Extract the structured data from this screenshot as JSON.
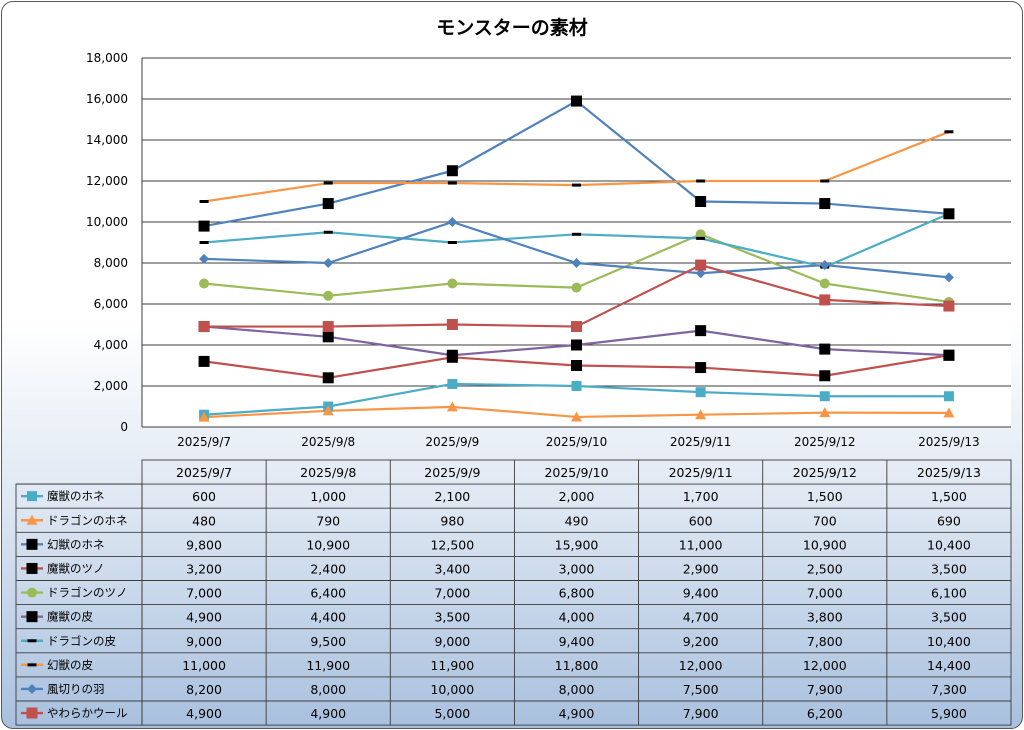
{
  "chart_data": {
    "type": "line",
    "title": "モンスターの素材",
    "categories": [
      "2025/9/7",
      "2025/9/8",
      "2025/9/9",
      "2025/9/10",
      "2025/9/11",
      "2025/9/12",
      "2025/9/13"
    ],
    "ylim": [
      0,
      18000
    ],
    "y_ticks": [
      "0",
      "2,000",
      "4,000",
      "6,000",
      "8,000",
      "10,000",
      "12,000",
      "14,000",
      "16,000",
      "18,000"
    ],
    "grid": true,
    "legend_placement": "data table",
    "series": [
      {
        "name": "魔獣のホネ",
        "color": "#4bacc6",
        "marker": "square",
        "values": [
          600,
          1000,
          2100,
          2000,
          1700,
          1500,
          1500
        ],
        "labels": [
          "600",
          "1,000",
          "2,100",
          "2,000",
          "1,700",
          "1,500",
          "1,500"
        ]
      },
      {
        "name": "ドラゴンのホネ",
        "color": "#f79646",
        "marker": "triangle",
        "values": [
          480,
          790,
          980,
          490,
          600,
          700,
          690
        ],
        "labels": [
          "480",
          "790",
          "980",
          "490",
          "600",
          "700",
          "690"
        ]
      },
      {
        "name": "幻獣のホネ",
        "color": "#4f81bd",
        "marker": "blacksquare",
        "values": [
          9800,
          10900,
          12500,
          15900,
          11000,
          10900,
          10400
        ],
        "labels": [
          "9,800",
          "10,900",
          "12,500",
          "15,900",
          "11,000",
          "10,900",
          "10,400"
        ]
      },
      {
        "name": "魔獣のツノ",
        "color": "#c0504d",
        "marker": "blacksquare",
        "values": [
          3200,
          2400,
          3400,
          3000,
          2900,
          2500,
          3500
        ],
        "labels": [
          "3,200",
          "2,400",
          "3,400",
          "3,000",
          "2,900",
          "2,500",
          "3,500"
        ]
      },
      {
        "name": "ドラゴンのツノ",
        "color": "#9bbb59",
        "marker": "circle",
        "values": [
          7000,
          6400,
          7000,
          6800,
          9400,
          7000,
          6100
        ],
        "labels": [
          "7,000",
          "6,400",
          "7,000",
          "6,800",
          "9,400",
          "7,000",
          "6,100"
        ]
      },
      {
        "name": "魔獣の皮",
        "color": "#8064a2",
        "marker": "blacksquare",
        "values": [
          4900,
          4400,
          3500,
          4000,
          4700,
          3800,
          3500
        ],
        "labels": [
          "4,900",
          "4,400",
          "3,500",
          "4,000",
          "4,700",
          "3,800",
          "3,500"
        ]
      },
      {
        "name": "ドラゴンの皮",
        "color": "#4bacc6",
        "marker": "dash",
        "values": [
          9000,
          9500,
          9000,
          9400,
          9200,
          7800,
          10400
        ],
        "labels": [
          "9,000",
          "9,500",
          "9,000",
          "9,400",
          "9,200",
          "7,800",
          "10,400"
        ]
      },
      {
        "name": "幻獣の皮",
        "color": "#f79646",
        "marker": "dash",
        "values": [
          11000,
          11900,
          11900,
          11800,
          12000,
          12000,
          14400
        ],
        "labels": [
          "11,000",
          "11,900",
          "11,900",
          "11,800",
          "12,000",
          "12,000",
          "14,400"
        ]
      },
      {
        "name": "風切りの羽",
        "color": "#4f81bd",
        "marker": "diamond",
        "values": [
          8200,
          8000,
          10000,
          8000,
          7500,
          7900,
          7300
        ],
        "labels": [
          "8,200",
          "8,000",
          "10,000",
          "8,000",
          "7,500",
          "7,900",
          "7,300"
        ]
      },
      {
        "name": "やわらかウール",
        "color": "#c0504d",
        "marker": "redsquare",
        "values": [
          4900,
          4900,
          5000,
          4900,
          7900,
          6200,
          5900
        ],
        "labels": [
          "4,900",
          "4,900",
          "5,000",
          "4,900",
          "7,900",
          "6,200",
          "5,900"
        ]
      }
    ]
  }
}
